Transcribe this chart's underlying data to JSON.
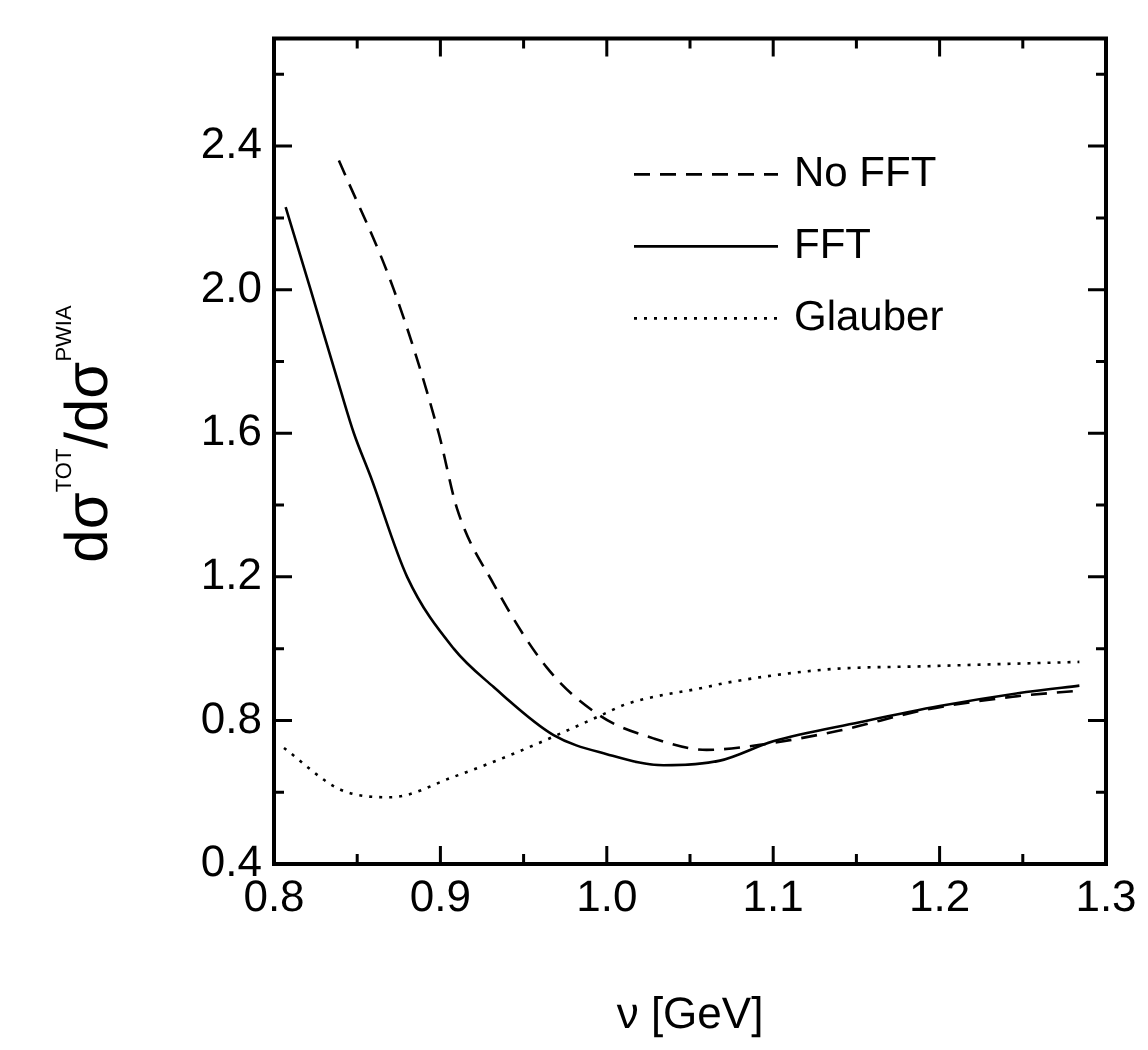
{
  "chart_data": {
    "type": "line",
    "xlabel": "ν [GeV]",
    "ylabel": "dσ$^{TOT}$/dσ$^{PWIA}$",
    "xlim": [
      0.8,
      1.3
    ],
    "ylim": [
      0.4,
      2.7
    ],
    "xticks": [
      0.8,
      {
        "value": 0.85,
        "label": null
      },
      0.9,
      {
        "value": 0.95,
        "label": null
      },
      {
        "value": 1.0,
        "label": "1.0"
      },
      {
        "value": 1.05,
        "label": null
      },
      1.1,
      {
        "value": 1.15,
        "label": null
      },
      1.2,
      {
        "value": 1.25,
        "label": null
      },
      1.3
    ],
    "yticks": [
      0.4,
      {
        "value": 0.6,
        "label": null
      },
      0.8,
      {
        "value": 1.0,
        "label": null
      },
      1.2,
      {
        "value": 1.4,
        "label": null
      },
      1.6,
      {
        "value": 1.8,
        "label": null
      },
      {
        "value": 2.0,
        "label": "2.0"
      },
      {
        "value": 2.2,
        "label": null
      },
      2.4,
      {
        "value": 2.6,
        "label": null
      }
    ],
    "grid": false,
    "legend": "top right",
    "marker": "none",
    "series": [
      {
        "name": "No FFT",
        "color": "#000000",
        "line_style": "dashed",
        "x": [
          0.839,
          0.872,
          0.899,
          0.91,
          0.932,
          0.964,
          0.996,
          1.028,
          1.06,
          1.092,
          1.14,
          1.192,
          1.244,
          1.284
        ],
        "values": [
          2.36,
          2.0,
          1.6,
          1.39,
          1.18,
          0.947,
          0.813,
          0.75,
          0.718,
          0.732,
          0.772,
          0.83,
          0.866,
          0.883
        ]
      },
      {
        "name": "FFT",
        "color": "#000000",
        "line_style": "solid",
        "x": [
          0.807,
          0.822,
          0.84,
          0.848,
          0.858,
          0.88,
          0.908,
          0.932,
          0.968,
          1.0,
          1.034,
          1.068,
          1.1,
          1.152,
          1.2,
          1.252,
          1.284
        ],
        "values": [
          2.23,
          2.0,
          1.72,
          1.6,
          1.48,
          1.2,
          1.0,
          0.893,
          0.759,
          0.706,
          0.675,
          0.688,
          0.742,
          0.795,
          0.84,
          0.879,
          0.897
        ]
      },
      {
        "name": "Glauber",
        "color": "#000000",
        "line_style": "dotted",
        "x": [
          0.806,
          0.84,
          0.87,
          0.908,
          0.948,
          0.996,
          1.012,
          1.06,
          1.072,
          1.132,
          1.192,
          1.284
        ],
        "values": [
          0.723,
          0.607,
          0.586,
          0.643,
          0.715,
          0.813,
          0.846,
          0.893,
          0.905,
          0.942,
          0.951,
          0.963
        ]
      }
    ]
  }
}
